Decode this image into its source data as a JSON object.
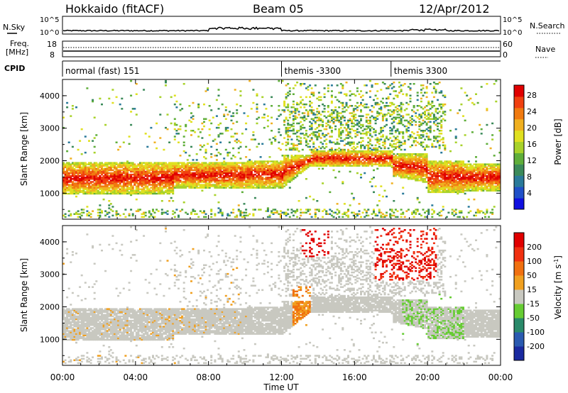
{
  "header": {
    "radar": "Hokkaido (fitACF)",
    "beam": "Beam 05",
    "date": "12/Apr/2012"
  },
  "top_panels": {
    "nsky_label": "N.Sky",
    "nsearch_label": "N.Search",
    "noise_ticks": [
      "10^5",
      "10^0"
    ],
    "freq_label_1": "Freq.",
    "freq_label_2": "[MHz]",
    "freq_ticks": [
      "18",
      "8"
    ],
    "nave_ticks": [
      "60",
      "0"
    ],
    "nave_label": "Nave",
    "cpid_label": "CPID",
    "cpid_segments": [
      {
        "label": "normal (fast) 151",
        "start_h": 0
      },
      {
        "label": "themis -3300",
        "start_h": 12
      },
      {
        "label": "themis 3300",
        "start_h": 18
      }
    ]
  },
  "chart_data": [
    {
      "type": "heatmap",
      "name": "power",
      "ylabel": "Slant Range [km]",
      "xlim_h": [
        0,
        24
      ],
      "ylim": [
        200,
        4500
      ],
      "yticks": [
        1000,
        2000,
        3000,
        4000
      ],
      "colorbar": {
        "label": "Power [dB]",
        "ticks": [
          "4",
          "8",
          "12",
          "16",
          "20",
          "24",
          "28"
        ],
        "colors": [
          "#1010e0",
          "#2050c8",
          "#2a7a9a",
          "#3b8a5a",
          "#5fae3a",
          "#a8d22a",
          "#e0e020",
          "#f0b020",
          "#f07a10",
          "#f04010",
          "#e00000"
        ]
      }
    },
    {
      "type": "heatmap",
      "name": "velocity",
      "ylabel": "Slant Range [km]",
      "xlabel": "Time UT",
      "xlim_h": [
        0,
        24
      ],
      "ylim": [
        200,
        4500
      ],
      "yticks": [
        1000,
        2000,
        3000,
        4000
      ],
      "xticks": [
        "00:00",
        "04:00",
        "08:00",
        "12:00",
        "16:00",
        "20:00",
        "00:00"
      ],
      "colorbar": {
        "label": "Velocity [m s^-1]",
        "ticks": [
          "200",
          "100",
          "50",
          "15",
          "-15",
          "-50",
          "-100",
          "-200"
        ],
        "colors": [
          "#1a2aa0",
          "#2a5ab0",
          "#2a8a6a",
          "#66cc33",
          "#c8c8c0",
          "#f0a020",
          "#f07010",
          "#f03010",
          "#e00000"
        ]
      }
    }
  ]
}
